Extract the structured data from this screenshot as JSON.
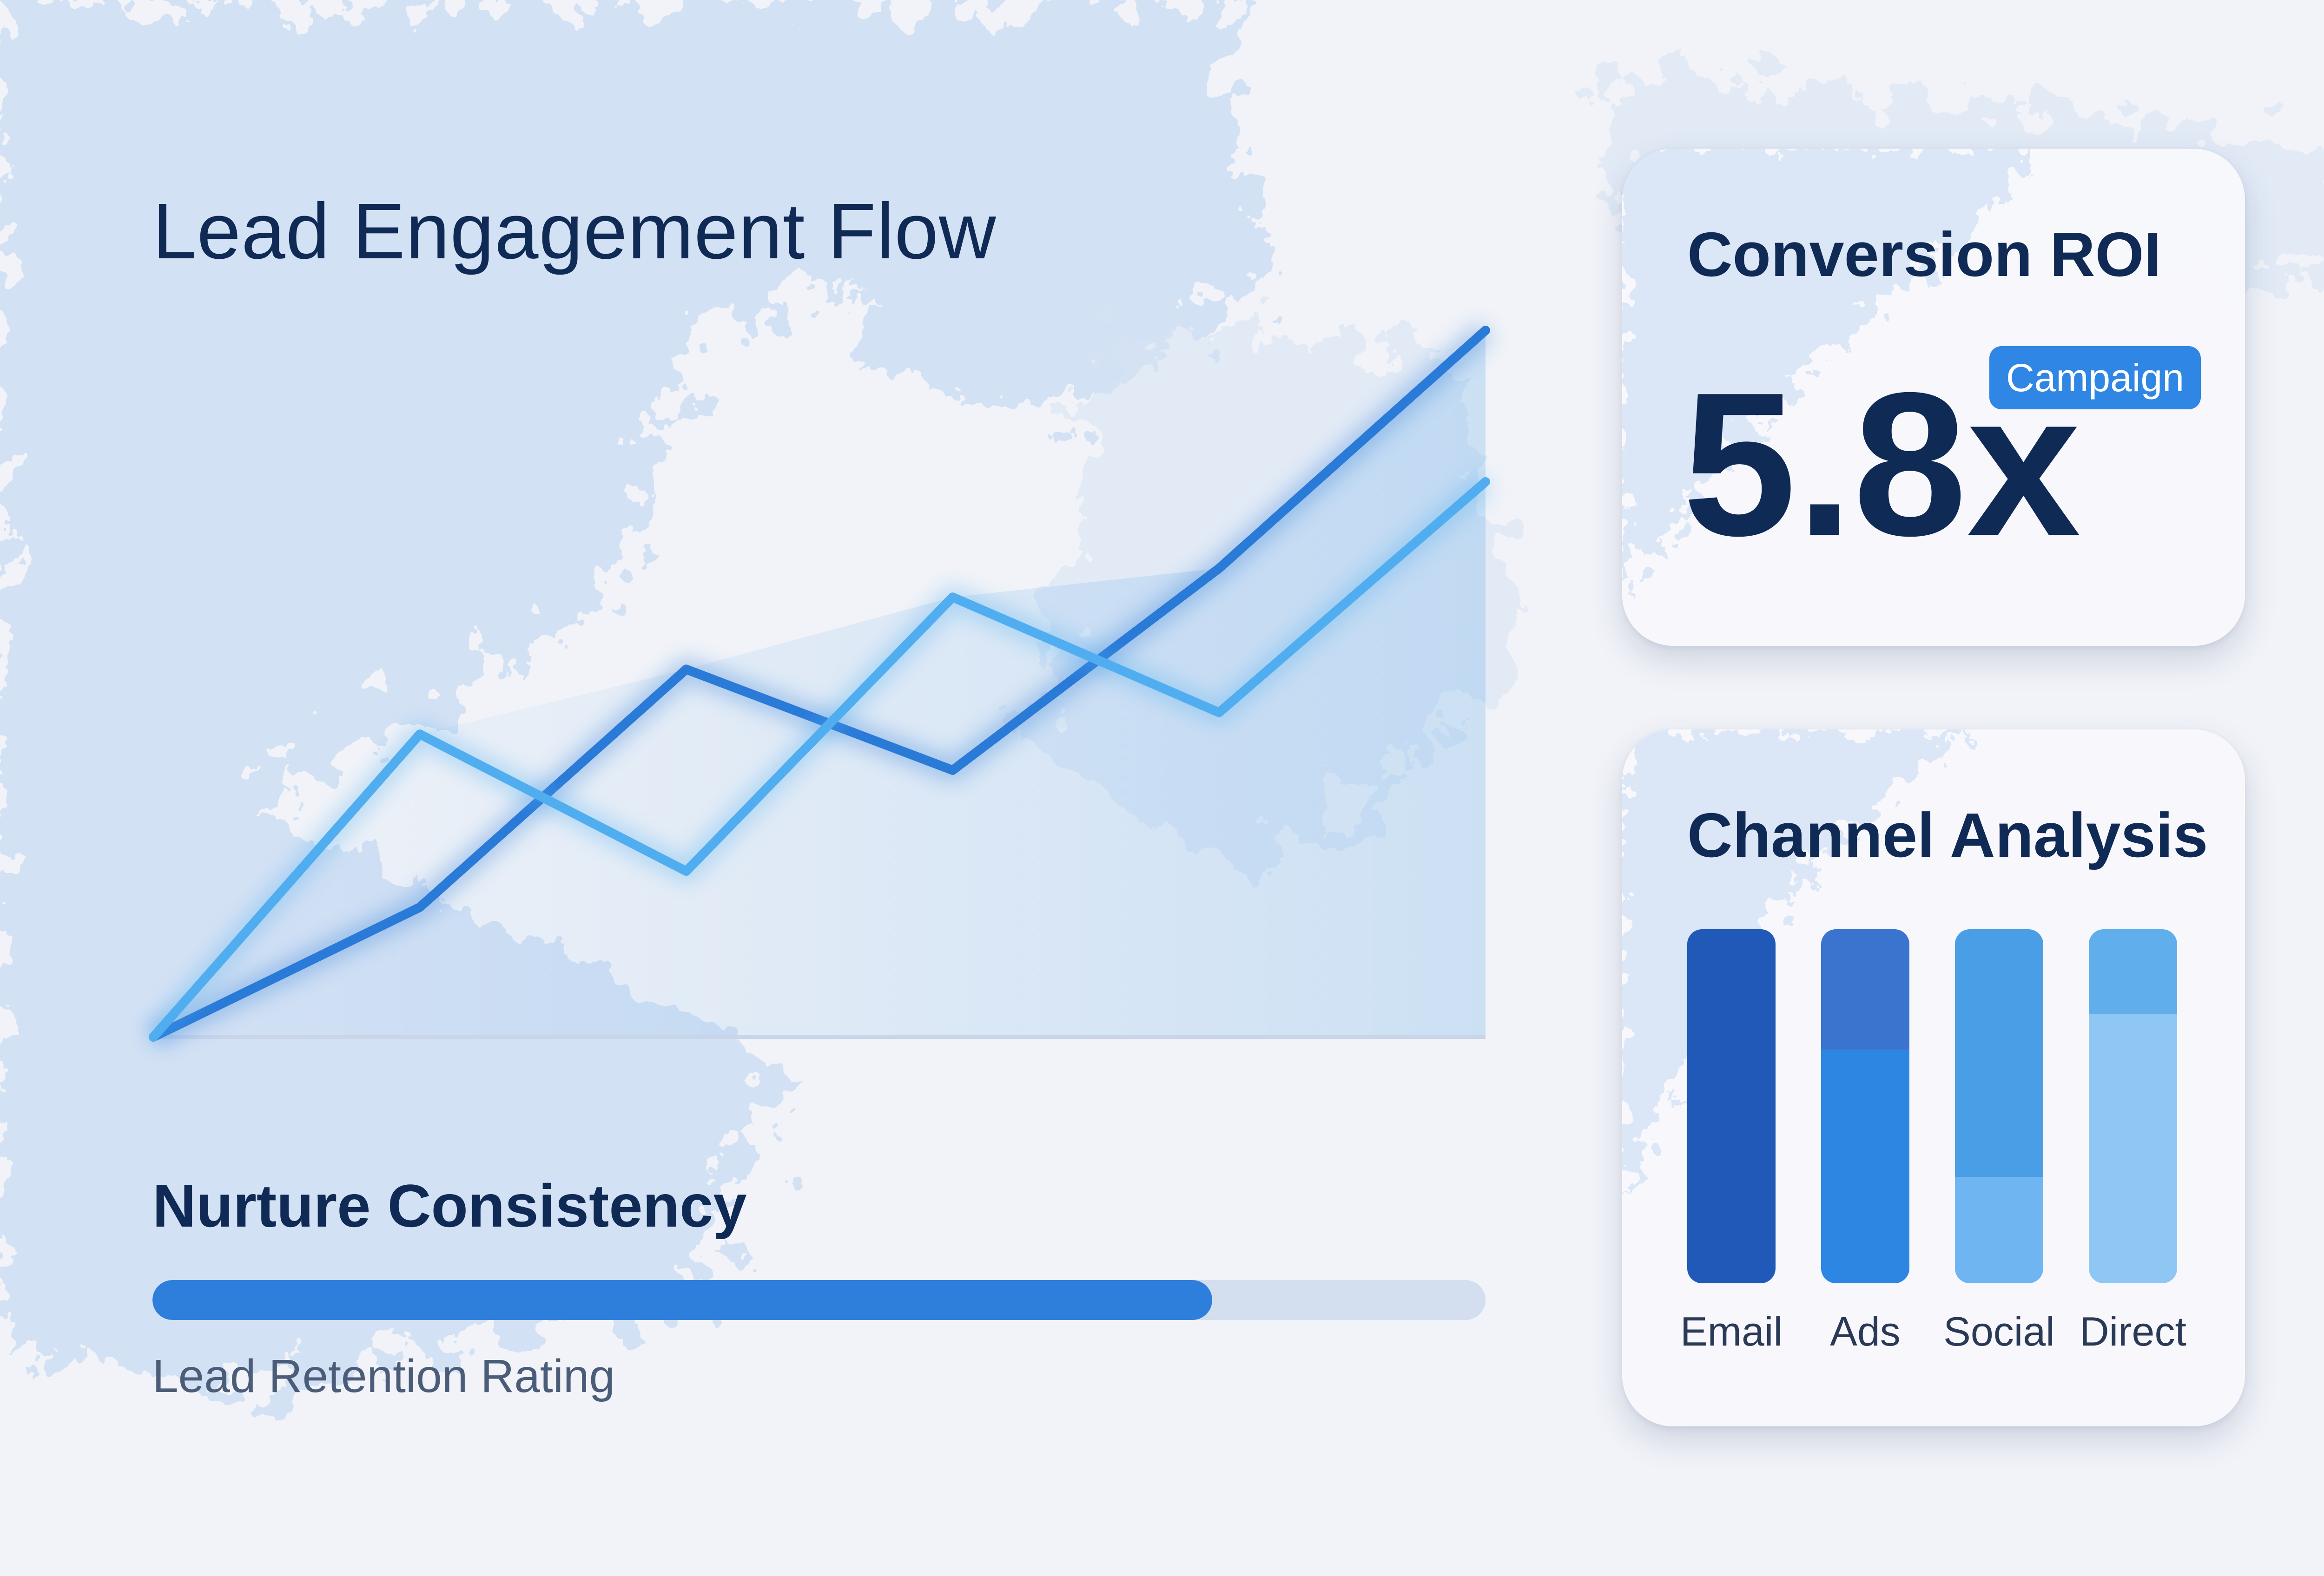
{
  "main": {
    "title": "Lead Engagement Flow"
  },
  "nurture": {
    "title": "Nurture Consistency",
    "caption": "Lead Retention Rating",
    "progress": 0.795
  },
  "roi_card": {
    "title": "Conversion ROI",
    "value": "5.8x",
    "badge": "Campaign"
  },
  "channel_card": {
    "title": "Channel Analysis"
  },
  "colors": {
    "navy_text": "#102a56",
    "accent": "#2e7fdc",
    "series_dark": "#2a7ad8",
    "series_light": "#50aef0",
    "background": "#f1f3f8"
  },
  "chart_data": [
    {
      "type": "line",
      "title": "Lead Engagement Flow",
      "x": [
        0,
        1,
        2,
        3,
        4,
        5
      ],
      "series": [
        {
          "values": [
            0,
            18,
            51,
            37,
            65,
            98
          ]
        },
        {
          "values": [
            0,
            42,
            23,
            61,
            45,
            77
          ]
        }
      ],
      "ylim": [
        0,
        100
      ],
      "grid": false,
      "area_fill": true
    },
    {
      "type": "bar",
      "title": "Channel Analysis",
      "categories": [
        "Email",
        "Ads",
        "Social",
        "Direct"
      ],
      "series": [
        {
          "values": [
            100,
            66,
            30,
            76
          ]
        },
        {
          "values": [
            0,
            34,
            70,
            24
          ]
        }
      ],
      "stacked": true,
      "colors": [
        [
          "#2059b7",
          "#2e86e3",
          "#6fb5f1",
          "#8ec6f4"
        ],
        [
          "#2059b7",
          "#3a74cf",
          "#4a9ee6",
          "#60aeeb"
        ]
      ]
    }
  ]
}
